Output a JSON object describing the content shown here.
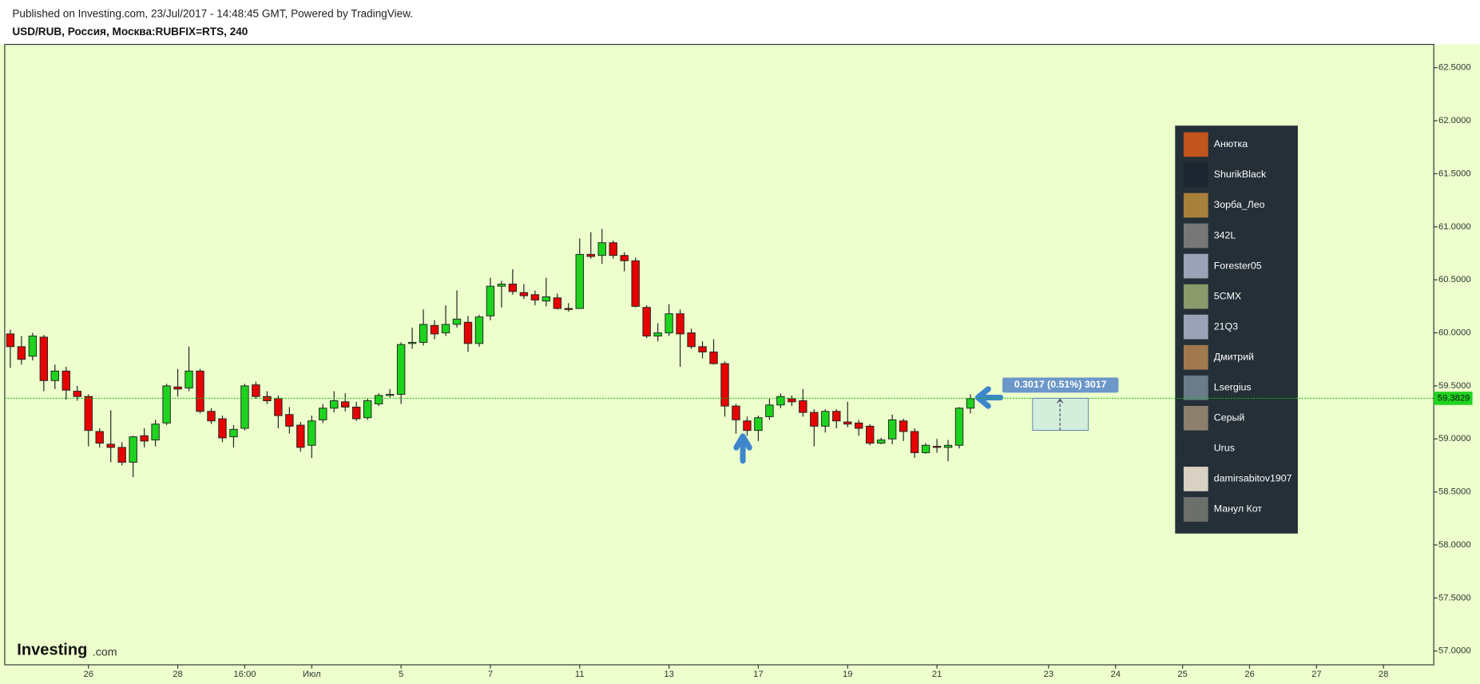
{
  "header": {
    "published": "Published on Investing.com, 23/Jul/2017 - 14:48:45 GMT, Powered by TradingView.",
    "symbol": "USD/RUB, Россия, Москва:RUBFIX=RTS, 240"
  },
  "logo": {
    "brand": "Investing",
    "domain": ".com"
  },
  "users": [
    "Анютка",
    "ShurikBlack",
    "Зорба_Лео",
    "342L",
    "Forester05",
    "5CMX",
    "21Q3",
    "Дмитрий",
    "Lsergius",
    "Серый",
    "Urus",
    "damirsabitov1907",
    "Манул Кот"
  ],
  "chart_data": {
    "type": "candlestick",
    "categories": [
      null,
      null,
      null,
      null,
      null,
      null,
      null,
      "26",
      null,
      null,
      null,
      null,
      null,
      null,
      null,
      "28",
      null,
      null,
      null,
      null,
      null,
      "16:00",
      null,
      null,
      null,
      null,
      null,
      "Июл",
      null,
      null,
      null,
      null,
      null,
      null,
      null,
      "5",
      null,
      null,
      null,
      null,
      null,
      null,
      null,
      "7",
      null,
      null,
      null,
      null,
      null,
      null,
      null,
      "11",
      null,
      null,
      null,
      null,
      null,
      null,
      null,
      "13",
      null,
      null,
      null,
      null,
      null,
      null,
      null,
      "17",
      null,
      null,
      null,
      null,
      null,
      null,
      null,
      "19",
      null,
      null,
      null,
      null,
      null,
      null,
      null,
      "21",
      null,
      null,
      null,
      null,
      null,
      null,
      null,
      null,
      null,
      "23",
      null,
      null,
      null,
      null,
      null,
      "24",
      null,
      null,
      null,
      null,
      null,
      "25",
      null,
      null,
      null,
      null,
      null,
      "26",
      null,
      null,
      null,
      null,
      null,
      "27",
      null,
      null,
      null,
      null,
      null,
      "28",
      null,
      null,
      null,
      null
    ],
    "open": [
      59.99,
      59.87,
      59.78,
      59.96,
      59.55,
      59.64,
      59.45,
      59.4,
      59.07,
      58.95,
      58.92,
      58.78,
      59.03,
      58.99,
      59.15,
      59.49,
      59.48,
      59.64,
      59.26,
      59.19,
      59.02,
      59.1,
      59.51,
      59.4,
      59.38,
      59.23,
      59.13,
      58.94,
      59.18,
      59.29,
      59.35,
      59.3,
      59.2,
      59.33,
      59.41,
      59.42,
      59.9,
      59.91,
      60.07,
      60.0,
      60.08,
      60.1,
      59.9,
      60.16,
      60.44,
      60.46,
      60.38,
      60.36,
      60.3,
      60.33,
      60.23,
      60.23,
      60.74,
      60.73,
      60.85,
      60.73,
      60.68,
      60.24,
      59.97,
      60.0,
      60.18,
      60.0,
      59.87,
      59.82,
      59.71,
      59.31,
      59.17,
      59.08,
      59.21,
      59.32,
      59.38,
      59.36,
      59.25,
      59.12,
      59.26,
      59.16,
      59.15,
      59.12,
      58.96,
      59.0,
      59.17,
      59.07,
      58.87,
      58.93,
      58.92,
      58.94,
      59.29,
      null,
      null,
      null,
      null,
      null,
      null,
      null,
      null,
      null,
      null,
      null,
      null,
      null,
      null,
      null,
      null,
      null,
      null,
      null,
      null,
      null,
      null,
      null,
      null,
      null,
      null,
      null,
      null,
      null,
      null,
      null,
      null,
      null,
      null,
      null,
      null,
      null,
      null,
      null,
      null,
      null
    ],
    "high": [
      60.03,
      59.97,
      60.0,
      59.98,
      59.7,
      59.68,
      59.5,
      59.42,
      59.1,
      59.27,
      58.97,
      59.03,
      59.1,
      59.18,
      59.52,
      59.66,
      59.87,
      59.66,
      59.29,
      59.22,
      59.13,
      59.52,
      59.54,
      59.45,
      59.41,
      59.3,
      59.16,
      59.22,
      59.33,
      59.45,
      59.43,
      59.35,
      59.38,
      59.43,
      59.47,
      59.91,
      60.05,
      60.22,
      60.12,
      60.26,
      60.4,
      60.16,
      60.17,
      60.52,
      60.49,
      60.6,
      60.46,
      60.4,
      60.52,
      60.37,
      60.28,
      60.89,
      60.95,
      60.98,
      60.87,
      60.76,
      60.71,
      60.26,
      60.09,
      60.27,
      60.22,
      60.04,
      59.92,
      59.94,
      59.73,
      59.33,
      59.21,
      59.22,
      59.38,
      59.43,
      59.41,
      59.47,
      59.28,
      59.28,
      59.28,
      59.35,
      59.18,
      59.14,
      59.01,
      59.23,
      59.19,
      59.1,
      58.96,
      59.0,
      58.99,
      59.3,
      59.42,
      null,
      null,
      null,
      null,
      null,
      null,
      null,
      null,
      null,
      null,
      null,
      null,
      null,
      null,
      null,
      null,
      null,
      null,
      null,
      null,
      null,
      null,
      null,
      null,
      null,
      null,
      null,
      null,
      null,
      null,
      null,
      null,
      null,
      null,
      null,
      null,
      null,
      null,
      null,
      null,
      null
    ],
    "low": [
      59.67,
      59.7,
      59.74,
      59.45,
      59.47,
      59.37,
      59.36,
      58.93,
      58.92,
      58.78,
      58.75,
      58.64,
      58.92,
      58.93,
      59.13,
      59.4,
      59.45,
      59.24,
      59.14,
      58.97,
      58.92,
      59.08,
      59.38,
      59.33,
      59.1,
      59.05,
      58.88,
      58.82,
      59.15,
      59.25,
      59.26,
      59.17,
      59.18,
      59.31,
      59.39,
      59.33,
      59.85,
      59.88,
      59.94,
      59.97,
      60.05,
      59.82,
      59.87,
      60.12,
      60.24,
      60.36,
      60.32,
      60.26,
      60.25,
      60.22,
      60.2,
      60.23,
      60.7,
      60.65,
      60.7,
      60.58,
      60.24,
      59.95,
      59.92,
      59.97,
      59.68,
      59.85,
      59.76,
      59.7,
      59.21,
      59.05,
      59.03,
      58.98,
      59.18,
      59.29,
      59.31,
      59.21,
      58.93,
      59.06,
      59.1,
      59.11,
      59.03,
      58.94,
      58.95,
      58.95,
      58.98,
      58.82,
      58.86,
      58.87,
      58.79,
      58.91,
      59.24,
      null,
      null,
      null,
      null,
      null,
      null,
      null,
      null,
      null,
      null,
      null,
      null,
      null,
      null,
      null,
      null,
      null,
      null,
      null,
      null,
      null,
      null,
      null,
      null,
      null,
      null,
      null,
      null,
      null,
      null,
      null,
      null,
      null,
      null,
      null,
      null,
      null,
      null,
      null,
      null,
      null
    ],
    "close": [
      59.87,
      59.75,
      59.97,
      59.55,
      59.64,
      59.46,
      59.4,
      59.08,
      58.96,
      58.92,
      58.78,
      59.02,
      58.98,
      59.14,
      59.5,
      59.47,
      59.64,
      59.26,
      59.17,
      59.01,
      59.09,
      59.5,
      59.4,
      59.36,
      59.22,
      59.12,
      58.92,
      59.17,
      59.29,
      59.36,
      59.3,
      59.19,
      59.36,
      59.41,
      59.42,
      59.89,
      59.91,
      60.08,
      59.99,
      60.08,
      60.13,
      59.9,
      60.15,
      60.44,
      60.46,
      60.39,
      60.35,
      60.31,
      60.34,
      60.23,
      60.22,
      60.74,
      60.72,
      60.85,
      60.73,
      60.68,
      60.25,
      59.97,
      60.0,
      60.18,
      59.99,
      59.87,
      59.82,
      59.71,
      59.31,
      59.18,
      59.08,
      59.2,
      59.32,
      59.4,
      59.35,
      59.25,
      59.12,
      59.26,
      59.17,
      59.14,
      59.1,
      58.96,
      58.99,
      59.18,
      59.07,
      58.87,
      58.94,
      58.92,
      58.94,
      59.29,
      59.38,
      null,
      null,
      null,
      null,
      null,
      null,
      null,
      null,
      null,
      null,
      null,
      null,
      null,
      null,
      null,
      null,
      null,
      null,
      null,
      null,
      null,
      null,
      null,
      null,
      null,
      null,
      null,
      null,
      null,
      null,
      null,
      null,
      null,
      null,
      null,
      null,
      null,
      null,
      null,
      null,
      null
    ],
    "up_color": "#1ed31e",
    "down_color": "#e60000",
    "background": "#ecffcc",
    "ylim": [
      56.87,
      62.72
    ],
    "yticks": [
      {
        "value": 57,
        "label": "57.0000"
      },
      {
        "value": 57.5,
        "label": "57.5000"
      },
      {
        "value": 58,
        "label": "58.0000"
      },
      {
        "value": 58.5,
        "label": "58.5000"
      },
      {
        "value": 59,
        "label": "59.0000"
      },
      {
        "value": 59.5,
        "label": "59.5000"
      },
      {
        "value": 60,
        "label": "60.0000"
      },
      {
        "value": 60.5,
        "label": "60.5000"
      },
      {
        "value": 61,
        "label": "61.0000"
      },
      {
        "value": 61.5,
        "label": "61.5000"
      },
      {
        "value": 62,
        "label": "62.0000"
      },
      {
        "value": 62.5,
        "label": "62.5000"
      }
    ],
    "current_price": {
      "value": 59.3829,
      "label": "59.3829"
    },
    "measure": {
      "label": "0.3017 (0.51%) 3017",
      "low": 59.0812,
      "high": 59.3829
    }
  }
}
